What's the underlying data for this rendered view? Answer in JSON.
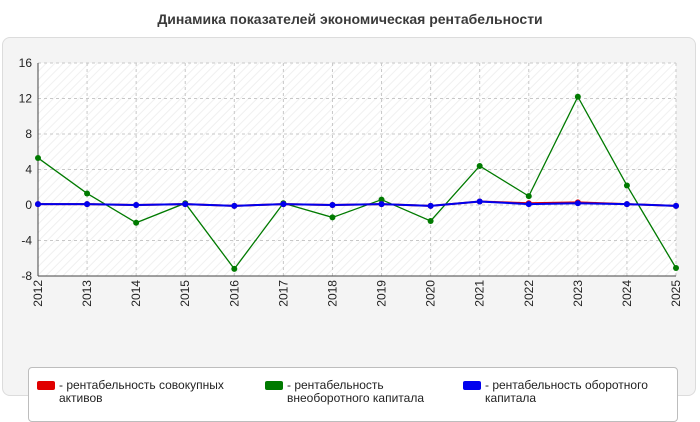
{
  "title": "Динамика показателей экономическая рентабельности",
  "chart_data": {
    "type": "line",
    "x": [
      "2012",
      "2013",
      "2014",
      "2015",
      "2016",
      "2017",
      "2018",
      "2019",
      "2020",
      "2021",
      "2022",
      "2023",
      "2024",
      "2025"
    ],
    "ylim": [
      -8,
      16
    ],
    "yticks": [
      "16",
      "12",
      "8",
      "4",
      "0",
      "-4",
      "-8"
    ],
    "grid": true,
    "legend_position": "bottom",
    "series": [
      {
        "name": "рентабельность совокупных активов",
        "color": "#e00000",
        "values": [
          0.1,
          0.1,
          0.0,
          0.1,
          -0.1,
          0.1,
          0.0,
          0.1,
          -0.1,
          0.4,
          0.2,
          0.3,
          0.1,
          -0.1
        ]
      },
      {
        "name": "рентабельность внеоборотного капитала",
        "color": "#007a00",
        "values": [
          5.3,
          1.3,
          -2.0,
          0.2,
          -7.2,
          0.2,
          -1.4,
          0.6,
          -1.8,
          4.4,
          1.0,
          12.2,
          2.2,
          -7.1
        ]
      },
      {
        "name": "рентабельность оборотного капитала",
        "color": "#0000ee",
        "values": [
          0.1,
          0.1,
          0.0,
          0.1,
          -0.1,
          0.1,
          0.0,
          0.1,
          -0.1,
          0.4,
          0.1,
          0.2,
          0.1,
          -0.1
        ]
      }
    ]
  },
  "legend": [
    {
      "label": "- рентабельность совокупных активов",
      "color": "#e00000"
    },
    {
      "label": "- рентабельность внеоборотного капитала",
      "color": "#007a00"
    },
    {
      "label": "- рентабельность оборотного капитала",
      "color": "#0000ee"
    }
  ]
}
